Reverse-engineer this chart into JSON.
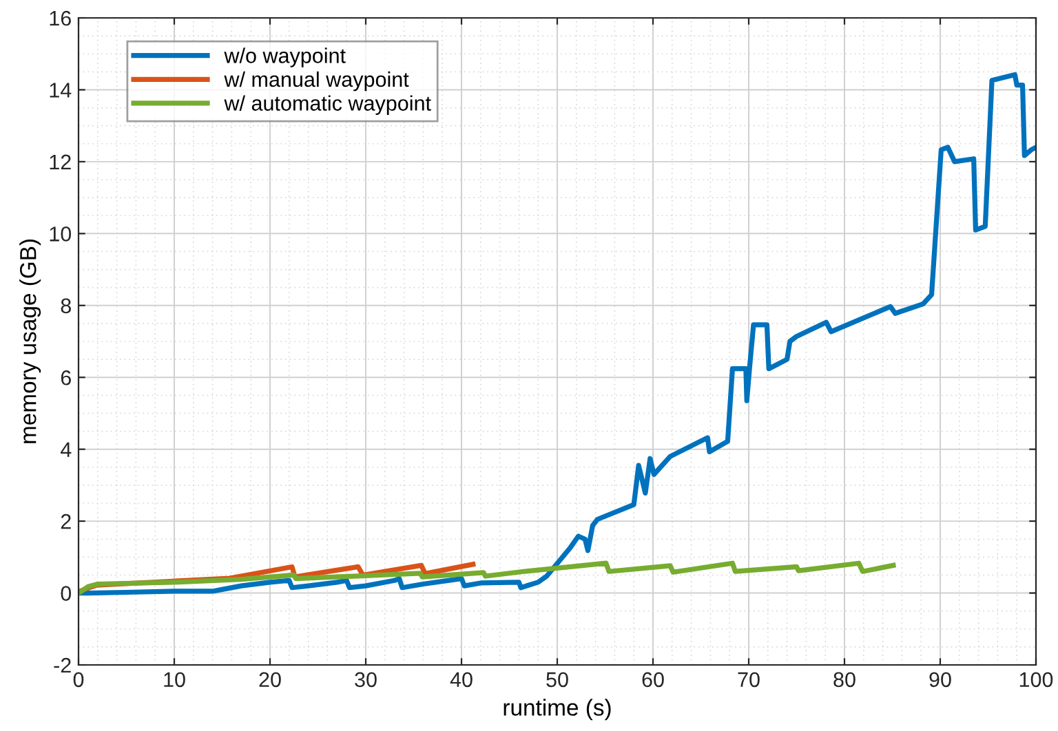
{
  "chart_data": {
    "type": "line",
    "xlabel": "runtime (s)",
    "ylabel": "memory usage (GB)",
    "xlim": [
      0,
      100
    ],
    "ylim": [
      -2,
      16
    ],
    "xticks": [
      0,
      10,
      20,
      30,
      40,
      50,
      60,
      70,
      80,
      90,
      100
    ],
    "yticks": [
      -2,
      0,
      2,
      4,
      6,
      8,
      10,
      12,
      14,
      16
    ],
    "grid": true,
    "legend": "top left",
    "line_style": "solid",
    "marker": "none",
    "series": [
      {
        "name": "w/o waypoint",
        "color": "#0072bd",
        "x": [
          0,
          1,
          5,
          10,
          14,
          15,
          17,
          20,
          22,
          22.3,
          24,
          27,
          28,
          28.3,
          30,
          33,
          33.5,
          33.8,
          36,
          40,
          40.3,
          42,
          46,
          46.2,
          48,
          48.9,
          51.3,
          52.2,
          52.9,
          53.2,
          53.7,
          54.2,
          58.0,
          58.5,
          59.2,
          59.7,
          60.1,
          61.8,
          65.7,
          65.9,
          67.8,
          68.3,
          69.7,
          69.8,
          70.1,
          70.5,
          71.9,
          72.1,
          74.0,
          74.3,
          75.0,
          78.1,
          78.6,
          84.8,
          85.3,
          88.2,
          89.1,
          90.1,
          90.8,
          91.5,
          93.5,
          93.7,
          94.7,
          95.4,
          97.8,
          98.0,
          98.6,
          98.8,
          99.5,
          100
        ],
        "values": [
          0,
          0,
          0.02,
          0.05,
          0.05,
          0.1,
          0.2,
          0.3,
          0.35,
          0.15,
          0.2,
          0.3,
          0.35,
          0.15,
          0.2,
          0.35,
          0.4,
          0.15,
          0.25,
          0.4,
          0.2,
          0.28,
          0.3,
          0.15,
          0.3,
          0.47,
          1.24,
          1.58,
          1.5,
          1.18,
          1.88,
          2.05,
          2.46,
          3.55,
          2.78,
          3.74,
          3.3,
          3.8,
          4.32,
          3.93,
          4.22,
          6.24,
          6.24,
          5.35,
          6.3,
          7.46,
          7.46,
          6.24,
          6.5,
          7.0,
          7.14,
          7.53,
          7.27,
          7.97,
          7.78,
          8.04,
          8.3,
          12.33,
          12.4,
          12.0,
          12.08,
          10.1,
          10.2,
          14.26,
          14.42,
          14.13,
          14.13,
          12.17,
          12.33,
          12.4
        ]
      },
      {
        "name": "w/ manual waypoint",
        "color": "#d95319",
        "x": [
          0,
          1.15,
          1.9,
          15.8,
          22.3,
          22.6,
          29.2,
          29.7,
          35.8,
          36.2,
          41.2
        ],
        "values": [
          0.04,
          0.15,
          0.22,
          0.41,
          0.73,
          0.45,
          0.73,
          0.5,
          0.77,
          0.54,
          0.8
        ]
      },
      {
        "name": "w/ automatic waypoint",
        "color": "#77ac30",
        "x": [
          0,
          1,
          2,
          10,
          17,
          22.5,
          22.7,
          35.7,
          35.9,
          42.3,
          42.5,
          46.5,
          55.1,
          55.4,
          61.8,
          62.1,
          68.3,
          68.6,
          75.0,
          75.2,
          81.5,
          81.9,
          85.1
        ],
        "values": [
          0,
          0.18,
          0.25,
          0.3,
          0.38,
          0.5,
          0.4,
          0.55,
          0.45,
          0.57,
          0.47,
          0.6,
          0.83,
          0.6,
          0.76,
          0.58,
          0.83,
          0.6,
          0.73,
          0.62,
          0.83,
          0.6,
          0.77
        ]
      }
    ]
  }
}
